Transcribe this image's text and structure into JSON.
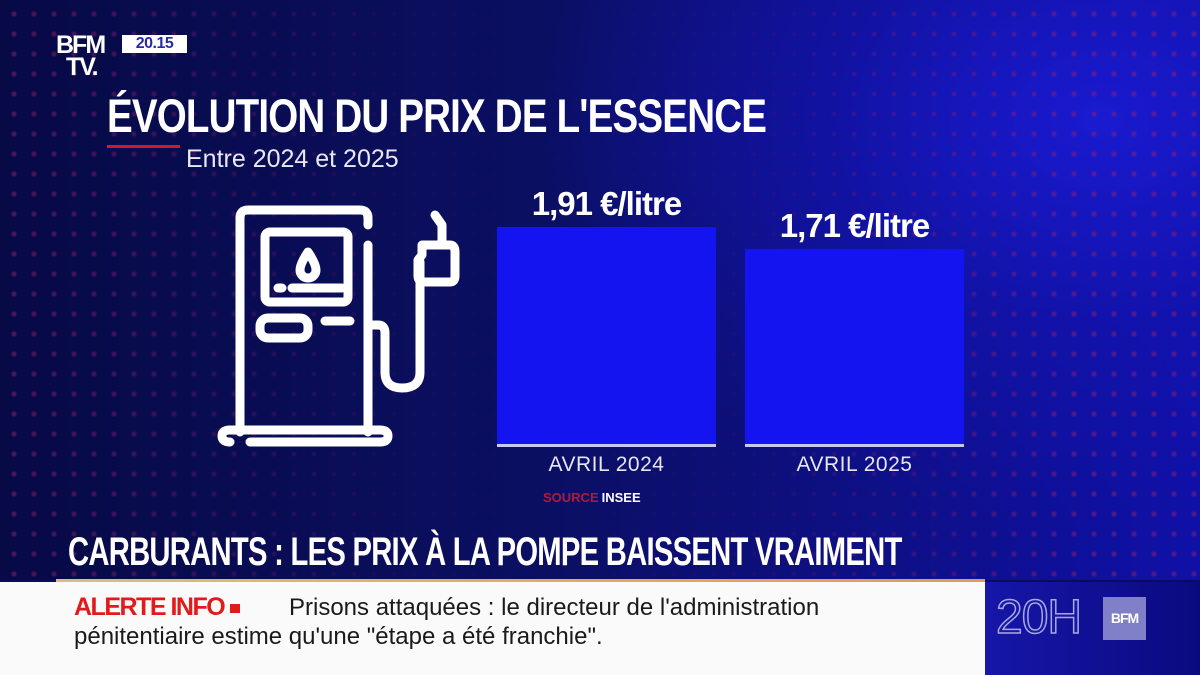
{
  "header": {
    "logo_line1": "BFM",
    "logo_line2": "TV.",
    "time": "20.15"
  },
  "graphic": {
    "title": "ÉVOLUTION DU PRIX DE L'ESSENCE",
    "subtitle": "Entre 2024 et 2025",
    "icon": "fuel-pump-icon",
    "source_label": "SOURCE",
    "source_value": "INSEE"
  },
  "chart_data": {
    "type": "bar",
    "title": "ÉVOLUTION DU PRIX DE L'ESSENCE",
    "subtitle": "Entre 2024 et 2025",
    "categories": [
      "AVRIL 2024",
      "AVRIL 2025"
    ],
    "values": [
      1.91,
      1.71
    ],
    "value_labels": [
      "1,91 €/litre",
      "1,71 €/litre"
    ],
    "unit": "€/litre",
    "xlabel": "",
    "ylabel": "",
    "grid": false,
    "bar_color": "#1414f0"
  },
  "lower_third": {
    "headline": "CARBURANTS : LES PRIX À LA POMPE BAISSENT VRAIMENT"
  },
  "ticker": {
    "alert_label": "ALERTE INFO",
    "text_line1": "Prisons attaquées : le directeur de l'administration",
    "text_line2": "pénitentiaire estime qu'une \"étape a été franchie\"."
  },
  "corner": {
    "show": "20H",
    "brand": "BFM"
  },
  "colors": {
    "background": "#0a0d55",
    "bar": "#1414f0",
    "alert": "#e21a1a",
    "accent_red": "#d01a2a"
  }
}
